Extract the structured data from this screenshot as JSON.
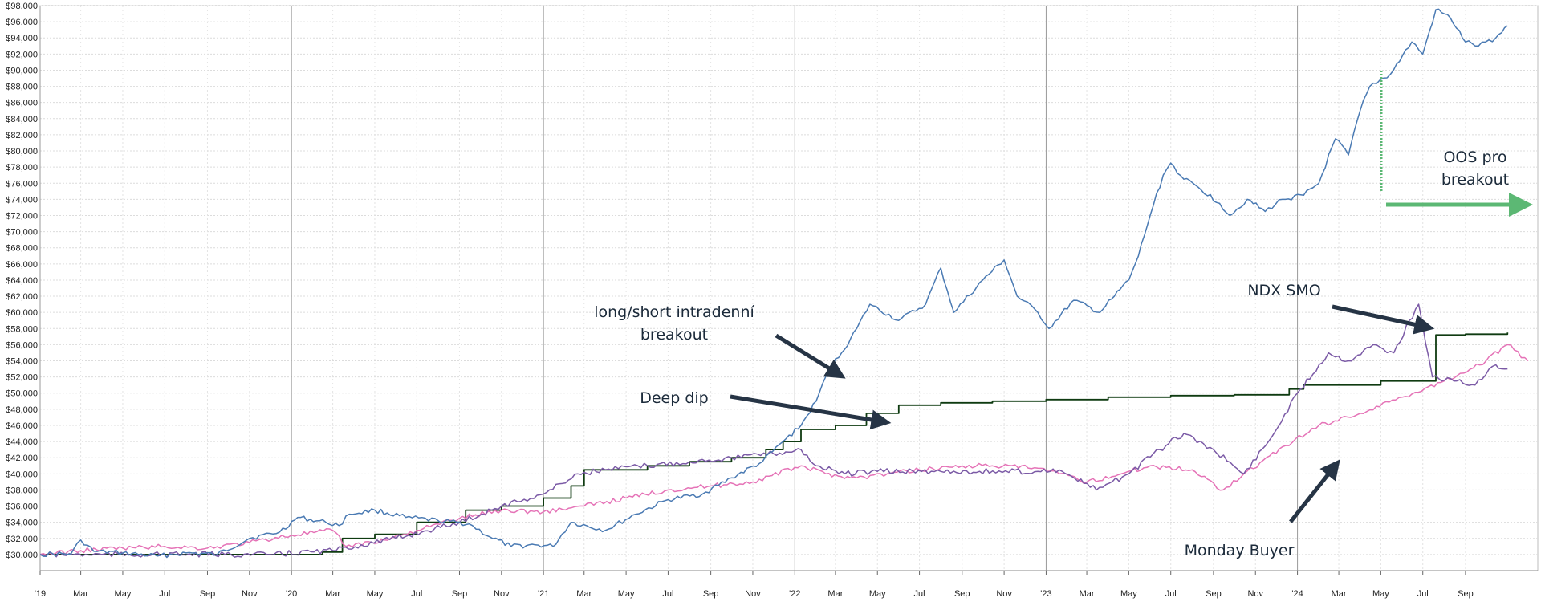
{
  "chart_data": {
    "type": "line",
    "title": "",
    "xlabel": "",
    "ylabel": "",
    "xlim": [
      "2019-01-01",
      "2024-12-15"
    ],
    "ylim": [
      28000,
      98000
    ],
    "y_ticks": [
      30000,
      32000,
      34000,
      36000,
      38000,
      40000,
      42000,
      44000,
      46000,
      48000,
      50000,
      52000,
      54000,
      56000,
      58000,
      60000,
      62000,
      64000,
      66000,
      68000,
      70000,
      72000,
      74000,
      76000,
      78000,
      80000,
      82000,
      84000,
      86000,
      88000,
      90000,
      92000,
      94000,
      96000,
      98000
    ],
    "y_tick_labels": [
      "$30,000",
      "$32,000",
      "$34,000",
      "$36,000",
      "$38,000",
      "$40,000",
      "$42,000",
      "$44,000",
      "$46,000",
      "$48,000",
      "$50,000",
      "$52,000",
      "$54,000",
      "$56,000",
      "$58,000",
      "$60,000",
      "$62,000",
      "$64,000",
      "$66,000",
      "$68,000",
      "$70,000",
      "$72,000",
      "$74,000",
      "$76,000",
      "$78,000",
      "$80,000",
      "$82,000",
      "$84,000",
      "$86,000",
      "$88,000",
      "$90,000",
      "$92,000",
      "$94,000",
      "$96,000",
      "$98,000"
    ],
    "x_ticks": [
      {
        "date": "2019-01-01",
        "label": "'19",
        "major": true
      },
      {
        "date": "2019-03-01",
        "label": "Mar"
      },
      {
        "date": "2019-05-01",
        "label": "May"
      },
      {
        "date": "2019-07-01",
        "label": "Jul"
      },
      {
        "date": "2019-09-01",
        "label": "Sep"
      },
      {
        "date": "2019-11-01",
        "label": "Nov"
      },
      {
        "date": "2020-01-01",
        "label": "'20",
        "major": true
      },
      {
        "date": "2020-03-01",
        "label": "Mar"
      },
      {
        "date": "2020-05-01",
        "label": "May"
      },
      {
        "date": "2020-07-01",
        "label": "Jul"
      },
      {
        "date": "2020-09-01",
        "label": "Sep"
      },
      {
        "date": "2020-11-01",
        "label": "Nov"
      },
      {
        "date": "2021-01-01",
        "label": "'21",
        "major": true
      },
      {
        "date": "2021-03-01",
        "label": "Mar"
      },
      {
        "date": "2021-05-01",
        "label": "May"
      },
      {
        "date": "2021-07-01",
        "label": "Jul"
      },
      {
        "date": "2021-09-01",
        "label": "Sep"
      },
      {
        "date": "2021-11-01",
        "label": "Nov"
      },
      {
        "date": "2022-01-01",
        "label": "'22",
        "major": true
      },
      {
        "date": "2022-03-01",
        "label": "Mar"
      },
      {
        "date": "2022-05-01",
        "label": "May"
      },
      {
        "date": "2022-07-01",
        "label": "Jul"
      },
      {
        "date": "2022-09-01",
        "label": "Sep"
      },
      {
        "date": "2022-11-01",
        "label": "Nov"
      },
      {
        "date": "2023-01-01",
        "label": "'23",
        "major": true
      },
      {
        "date": "2023-03-01",
        "label": "Mar"
      },
      {
        "date": "2023-05-01",
        "label": "May"
      },
      {
        "date": "2023-07-01",
        "label": "Jul"
      },
      {
        "date": "2023-09-01",
        "label": "Sep"
      },
      {
        "date": "2023-11-01",
        "label": "Nov"
      },
      {
        "date": "2024-01-01",
        "label": "'24",
        "major": true
      },
      {
        "date": "2024-03-01",
        "label": "Mar"
      },
      {
        "date": "2024-05-01",
        "label": "May"
      },
      {
        "date": "2024-07-01",
        "label": "Jul"
      },
      {
        "date": "2024-09-01",
        "label": "Sep"
      }
    ],
    "grid": true,
    "legend": "none",
    "series": [
      {
        "color": "#4a7ab3",
        "points": [
          [
            "2019-01-01",
            30000
          ],
          [
            "2019-02-15",
            30100
          ],
          [
            "2019-03-01",
            31800
          ],
          [
            "2019-03-20",
            30400
          ],
          [
            "2019-05-01",
            30200
          ],
          [
            "2019-06-20",
            29800
          ],
          [
            "2019-08-01",
            30200
          ],
          [
            "2019-09-15",
            30000
          ],
          [
            "2019-11-01",
            32000
          ],
          [
            "2019-12-15",
            32800
          ],
          [
            "2020-01-10",
            34600
          ],
          [
            "2020-02-20",
            34000
          ],
          [
            "2020-03-10",
            33600
          ],
          [
            "2020-03-25",
            35000
          ],
          [
            "2020-05-01",
            35500
          ],
          [
            "2020-06-15",
            34600
          ],
          [
            "2020-08-01",
            34200
          ],
          [
            "2020-09-15",
            33800
          ],
          [
            "2020-10-15",
            32200
          ],
          [
            "2020-11-15",
            31000
          ],
          [
            "2020-12-20",
            31200
          ],
          [
            "2021-01-15",
            31000
          ],
          [
            "2021-02-10",
            34000
          ],
          [
            "2021-04-01",
            33000
          ],
          [
            "2021-05-15",
            35000
          ],
          [
            "2021-07-01",
            36800
          ],
          [
            "2021-08-20",
            37500
          ],
          [
            "2021-10-01",
            39500
          ],
          [
            "2021-11-15",
            41500
          ],
          [
            "2021-12-15",
            44000
          ],
          [
            "2022-01-10",
            46000
          ],
          [
            "2022-02-01",
            49000
          ],
          [
            "2022-02-20",
            53000
          ],
          [
            "2022-03-10",
            55000
          ],
          [
            "2022-04-01",
            58000
          ],
          [
            "2022-04-20",
            61000
          ],
          [
            "2022-06-01",
            59000
          ],
          [
            "2022-07-10",
            61000
          ],
          [
            "2022-08-01",
            65500
          ],
          [
            "2022-08-20",
            60000
          ],
          [
            "2022-10-01",
            64000
          ],
          [
            "2022-11-01",
            66500
          ],
          [
            "2022-11-20",
            62000
          ],
          [
            "2022-12-20",
            60000
          ],
          [
            "2023-01-05",
            58000
          ],
          [
            "2023-02-10",
            61500
          ],
          [
            "2023-03-20",
            60000
          ],
          [
            "2023-04-10",
            62000
          ],
          [
            "2023-05-01",
            64000
          ],
          [
            "2023-05-15",
            67000
          ],
          [
            "2023-06-01",
            72000
          ],
          [
            "2023-06-20",
            77000
          ],
          [
            "2023-07-01",
            78500
          ],
          [
            "2023-07-20",
            76500
          ],
          [
            "2023-08-10",
            75500
          ],
          [
            "2023-09-10",
            73500
          ],
          [
            "2023-09-25",
            72000
          ],
          [
            "2023-10-20",
            74000
          ],
          [
            "2023-11-15",
            72500
          ],
          [
            "2023-12-10",
            74000
          ],
          [
            "2024-01-10",
            74500
          ],
          [
            "2024-02-01",
            76000
          ],
          [
            "2024-02-25",
            81500
          ],
          [
            "2024-03-15",
            79500
          ],
          [
            "2024-04-01",
            85000
          ],
          [
            "2024-04-15",
            88000
          ],
          [
            "2024-05-15",
            89500
          ],
          [
            "2024-06-15",
            93500
          ],
          [
            "2024-07-01",
            92000
          ],
          [
            "2024-07-20",
            97500
          ],
          [
            "2024-08-10",
            96500
          ],
          [
            "2024-09-01",
            93500
          ],
          [
            "2024-09-20",
            93000
          ],
          [
            "2024-10-15",
            94000
          ],
          [
            "2024-11-01",
            95500
          ]
        ]
      },
      {
        "color": "#0f3b11",
        "points": [
          [
            "2019-01-01",
            30000
          ],
          [
            "2019-07-01",
            30000
          ],
          [
            "2019-12-01",
            30000
          ],
          [
            "2020-02-15",
            30300
          ],
          [
            "2020-03-15",
            32000
          ],
          [
            "2020-05-01",
            32500
          ],
          [
            "2020-07-01",
            34000
          ],
          [
            "2020-09-10",
            35500
          ],
          [
            "2020-11-01",
            36000
          ],
          [
            "2021-01-01",
            37000
          ],
          [
            "2021-02-10",
            38500
          ],
          [
            "2021-03-01",
            40500
          ],
          [
            "2021-04-20",
            40500
          ],
          [
            "2021-06-01",
            41000
          ],
          [
            "2021-08-01",
            41500
          ],
          [
            "2021-10-01",
            42000
          ],
          [
            "2021-11-20",
            43000
          ],
          [
            "2021-12-15",
            44000
          ],
          [
            "2022-01-10",
            45500
          ],
          [
            "2022-03-01",
            46000
          ],
          [
            "2022-04-15",
            47500
          ],
          [
            "2022-06-01",
            48500
          ],
          [
            "2022-08-01",
            48800
          ],
          [
            "2022-10-15",
            49000
          ],
          [
            "2023-01-01",
            49200
          ],
          [
            "2023-04-01",
            49500
          ],
          [
            "2023-07-01",
            49700
          ],
          [
            "2023-10-01",
            49800
          ],
          [
            "2023-12-20",
            50500
          ],
          [
            "2024-01-10",
            51000
          ],
          [
            "2024-03-01",
            51000
          ],
          [
            "2024-05-01",
            51500
          ],
          [
            "2024-07-01",
            51500
          ],
          [
            "2024-07-20",
            57200
          ],
          [
            "2024-09-01",
            57300
          ],
          [
            "2024-11-01",
            57500
          ]
        ]
      },
      {
        "color": "#e573b7",
        "points": [
          [
            "2019-01-01",
            30000
          ],
          [
            "2019-03-01",
            30500
          ],
          [
            "2019-05-01",
            30800
          ],
          [
            "2019-07-01",
            31000
          ],
          [
            "2019-09-01",
            30800
          ],
          [
            "2019-11-01",
            31500
          ],
          [
            "2020-01-01",
            32400
          ],
          [
            "2020-03-01",
            33000
          ],
          [
            "2020-03-20",
            31000
          ],
          [
            "2020-05-15",
            31800
          ],
          [
            "2020-07-01",
            33000
          ],
          [
            "2020-09-01",
            34500
          ],
          [
            "2020-11-01",
            35500
          ],
          [
            "2021-01-01",
            35300
          ],
          [
            "2021-03-01",
            36000
          ],
          [
            "2021-05-01",
            37000
          ],
          [
            "2021-07-01",
            38000
          ],
          [
            "2021-09-01",
            38500
          ],
          [
            "2021-11-01",
            39000
          ],
          [
            "2022-01-10",
            41000
          ],
          [
            "2022-02-15",
            40000
          ],
          [
            "2022-04-01",
            39500
          ],
          [
            "2022-05-15",
            40000
          ],
          [
            "2022-07-01",
            40500
          ],
          [
            "2022-09-01",
            41000
          ],
          [
            "2022-10-15",
            41000
          ],
          [
            "2022-12-20",
            40700
          ],
          [
            "2023-01-20",
            40000
          ],
          [
            "2023-03-01",
            39000
          ],
          [
            "2023-04-20",
            40000
          ],
          [
            "2023-06-01",
            41000
          ],
          [
            "2023-08-01",
            40500
          ],
          [
            "2023-09-15",
            38000
          ],
          [
            "2023-10-15",
            40000
          ],
          [
            "2023-12-15",
            43500
          ],
          [
            "2024-02-01",
            46000
          ],
          [
            "2024-04-01",
            47500
          ],
          [
            "2024-06-01",
            49500
          ],
          [
            "2024-08-01",
            51500
          ],
          [
            "2024-10-01",
            54000
          ],
          [
            "2024-11-01",
            56000
          ],
          [
            "2024-12-01",
            54000
          ]
        ]
      },
      {
        "color": "#7b5aa6",
        "points": [
          [
            "2019-01-01",
            30000
          ],
          [
            "2019-06-01",
            30000
          ],
          [
            "2019-12-01",
            30000
          ],
          [
            "2020-03-01",
            30500
          ],
          [
            "2020-06-01",
            32000
          ],
          [
            "2020-09-01",
            34000
          ],
          [
            "2020-11-01",
            36000
          ],
          [
            "2021-01-01",
            37500
          ],
          [
            "2021-02-20",
            40000
          ],
          [
            "2021-04-01",
            40500
          ],
          [
            "2021-06-01",
            41000
          ],
          [
            "2021-08-01",
            41500
          ],
          [
            "2021-10-01",
            42000
          ],
          [
            "2021-12-01",
            42500
          ],
          [
            "2022-01-10",
            43000
          ],
          [
            "2022-02-01",
            41000
          ],
          [
            "2022-03-15",
            40000
          ],
          [
            "2022-05-01",
            40300
          ],
          [
            "2022-08-01",
            40300
          ],
          [
            "2022-12-20",
            40300
          ],
          [
            "2023-01-20",
            40500
          ],
          [
            "2023-03-15",
            38000
          ],
          [
            "2023-05-01",
            40000
          ],
          [
            "2023-06-15",
            43000
          ],
          [
            "2023-07-20",
            45000
          ],
          [
            "2023-09-01",
            43000
          ],
          [
            "2023-10-15",
            40000
          ],
          [
            "2023-11-20",
            44000
          ],
          [
            "2024-01-01",
            50000
          ],
          [
            "2024-02-15",
            55000
          ],
          [
            "2024-03-15",
            54000
          ],
          [
            "2024-04-20",
            56000
          ],
          [
            "2024-05-20",
            55000
          ],
          [
            "2024-06-25",
            61000
          ],
          [
            "2024-07-15",
            52000
          ],
          [
            "2024-08-15",
            51500
          ],
          [
            "2024-09-15",
            51000
          ],
          [
            "2024-10-15",
            53500
          ],
          [
            "2024-11-01",
            53000
          ]
        ]
      }
    ],
    "annotations": [
      {
        "text_lines": [
          "long/short intradenní",
          "breakout"
        ]
      },
      {
        "text_lines": [
          "Deep dip"
        ]
      },
      {
        "text_lines": [
          "NDX SMO"
        ]
      },
      {
        "text_lines": [
          "Monday Buyer"
        ]
      },
      {
        "text_lines": [
          "OOS pro",
          "breakout"
        ]
      }
    ]
  }
}
